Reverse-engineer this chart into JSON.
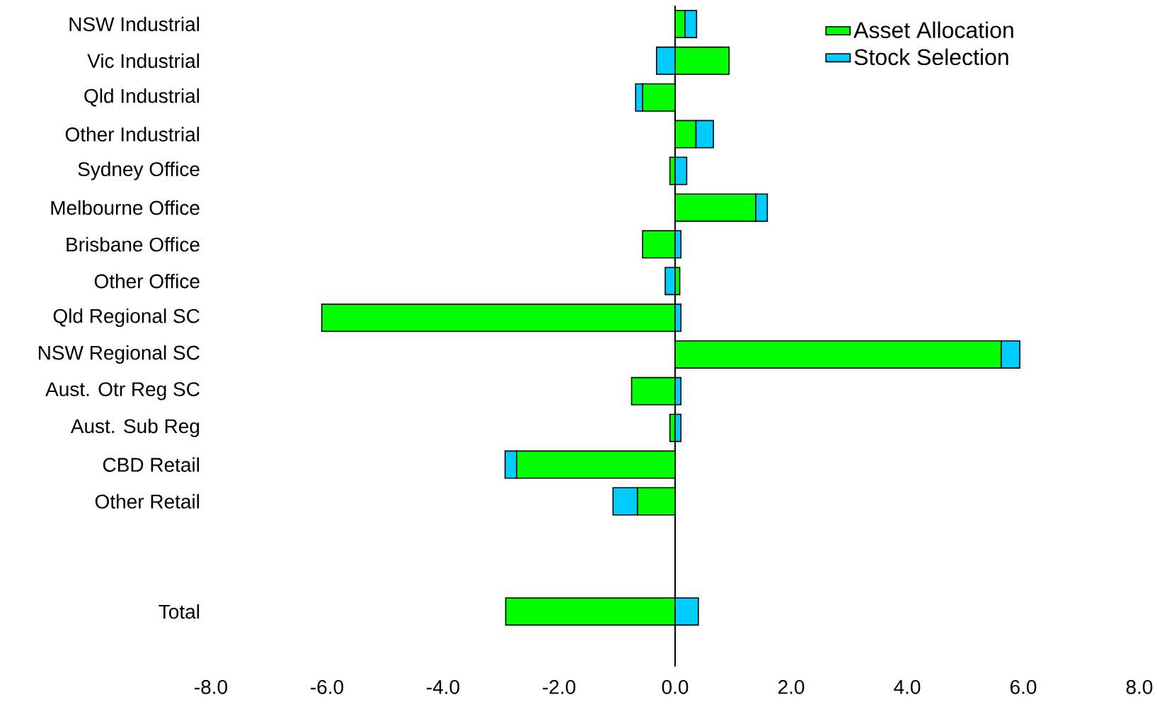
{
  "chart_data": {
    "type": "bar",
    "orientation": "horizontal",
    "stacked": true,
    "categories": [
      "NSW Industrial",
      "Vic Industrial",
      "Qld Industrial",
      "Other Industrial",
      "Sydney Office",
      "Melbourne Office",
      "Brisbane Office",
      "Other Office",
      "Qld Regional SC",
      "NSW Regional SC",
      "Aust. Otr Reg SC",
      "Aust. Sub Reg",
      "CBD Retail",
      "Other Retail",
      null,
      null,
      "Total"
    ],
    "series": [
      {
        "name": "Asset Allocation",
        "color": "#00ff00",
        "values": [
          0.17,
          0.93,
          -0.56,
          0.36,
          -0.09,
          1.39,
          -0.56,
          0.08,
          -6.09,
          5.62,
          -0.75,
          -0.09,
          -2.73,
          -0.65,
          null,
          null,
          -2.92
        ]
      },
      {
        "name": "Stock Selection",
        "color": "#00ccff",
        "values": [
          0.2,
          -0.32,
          -0.12,
          0.3,
          0.2,
          0.2,
          0.1,
          -0.17,
          0.1,
          0.32,
          0.1,
          0.1,
          -0.2,
          -0.42,
          null,
          null,
          0.4
        ]
      }
    ],
    "xlim": [
      -8,
      8
    ],
    "xticks": [
      {
        "value": -8,
        "label": "-8.0"
      },
      {
        "value": -6,
        "label": "-6.0"
      },
      {
        "value": -4,
        "label": "-4.0"
      },
      {
        "value": -2,
        "label": "-2.0"
      },
      {
        "value": 0,
        "label": "0.0"
      },
      {
        "value": 2,
        "label": "2.0"
      },
      {
        "value": 4,
        "label": "4.0"
      },
      {
        "value": 6,
        "label": "6.0"
      },
      {
        "value": 8,
        "label": "8.0"
      }
    ],
    "legend": "top right"
  }
}
